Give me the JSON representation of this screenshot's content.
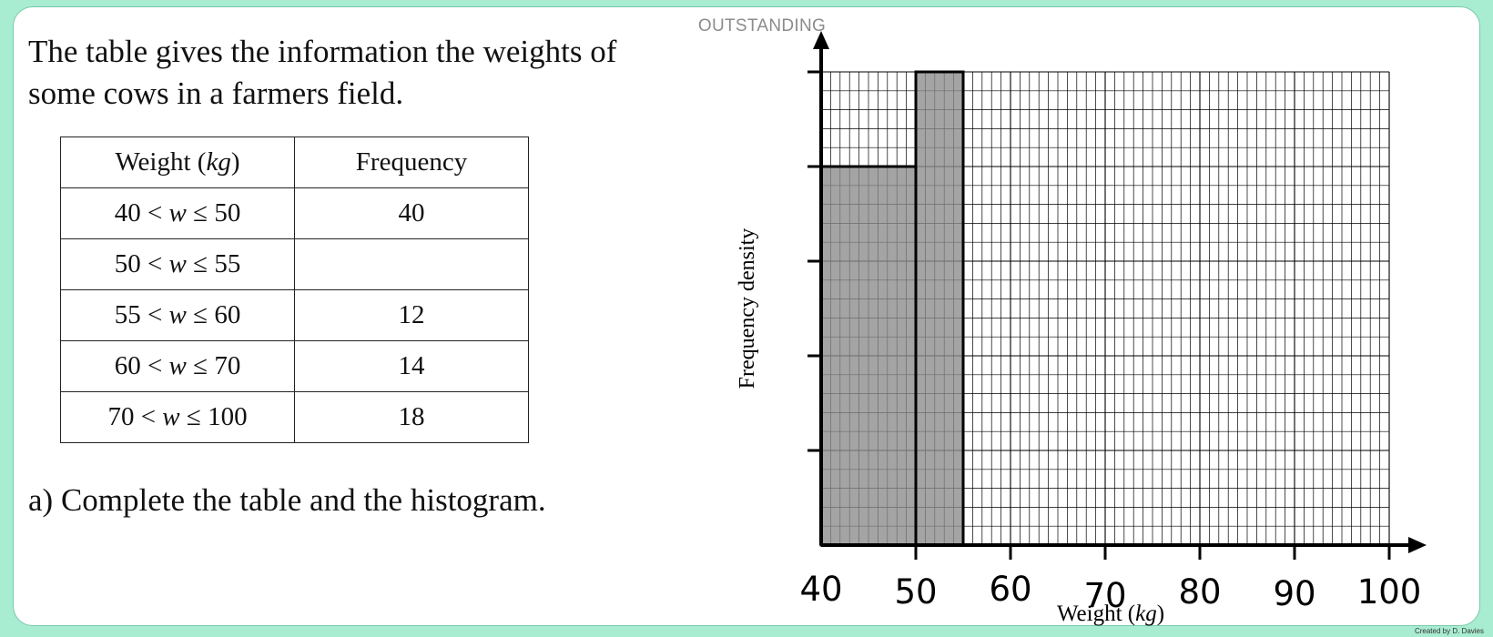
{
  "header": {
    "banner": "OUTSTANDING"
  },
  "question": {
    "intro": "The table gives the information the weights of some cows in a farmers field.",
    "part_a": "a) Complete the table and the histogram."
  },
  "table": {
    "headers": {
      "weight_prefix": "Weight (",
      "weight_unit": "kg",
      "weight_suffix": ")",
      "frequency": "Frequency"
    },
    "rows": [
      {
        "lower": "40",
        "op1": "<",
        "var": "w",
        "op2": "≤",
        "upper": "50",
        "frequency": "40"
      },
      {
        "lower": "50",
        "op1": "<",
        "var": "w",
        "op2": "≤",
        "upper": "55",
        "frequency": ""
      },
      {
        "lower": "55",
        "op1": "<",
        "var": "w",
        "op2": "≤",
        "upper": "60",
        "frequency": "12"
      },
      {
        "lower": "60",
        "op1": "<",
        "var": "w",
        "op2": "≤",
        "upper": "70",
        "frequency": "14"
      },
      {
        "lower": "70",
        "op1": "<",
        "var": "w",
        "op2": "≤",
        "upper": "100",
        "frequency": "18"
      }
    ]
  },
  "chart_data": {
    "type": "bar",
    "subtype": "histogram",
    "xlabel_prefix": "Weight (",
    "xlabel_unit": "kg",
    "xlabel_suffix": ")",
    "ylabel": "Frequency density",
    "x_ticks": [
      "40",
      "50",
      "60",
      "70",
      "80",
      "90",
      "100"
    ],
    "x_tick_values": [
      40,
      50,
      60,
      70,
      80,
      90,
      100
    ],
    "xlim": [
      40,
      100
    ],
    "ylim": [
      0,
      5
    ],
    "y_major_ticks": [
      1,
      2,
      3,
      4,
      5
    ],
    "y_tick_labels_shown": false,
    "grid": true,
    "grid_minor_x_step": 1,
    "grid_minor_y_step": 0.2,
    "bars": [
      {
        "x0": 40,
        "x1": 50,
        "height": 4
      },
      {
        "x0": 50,
        "x1": 55,
        "height": 5
      }
    ],
    "colors": {
      "bar_fill": "#8a8a8a",
      "grid": "#000000",
      "axis": "#000000"
    }
  },
  "credit": "Created by D. Davies"
}
